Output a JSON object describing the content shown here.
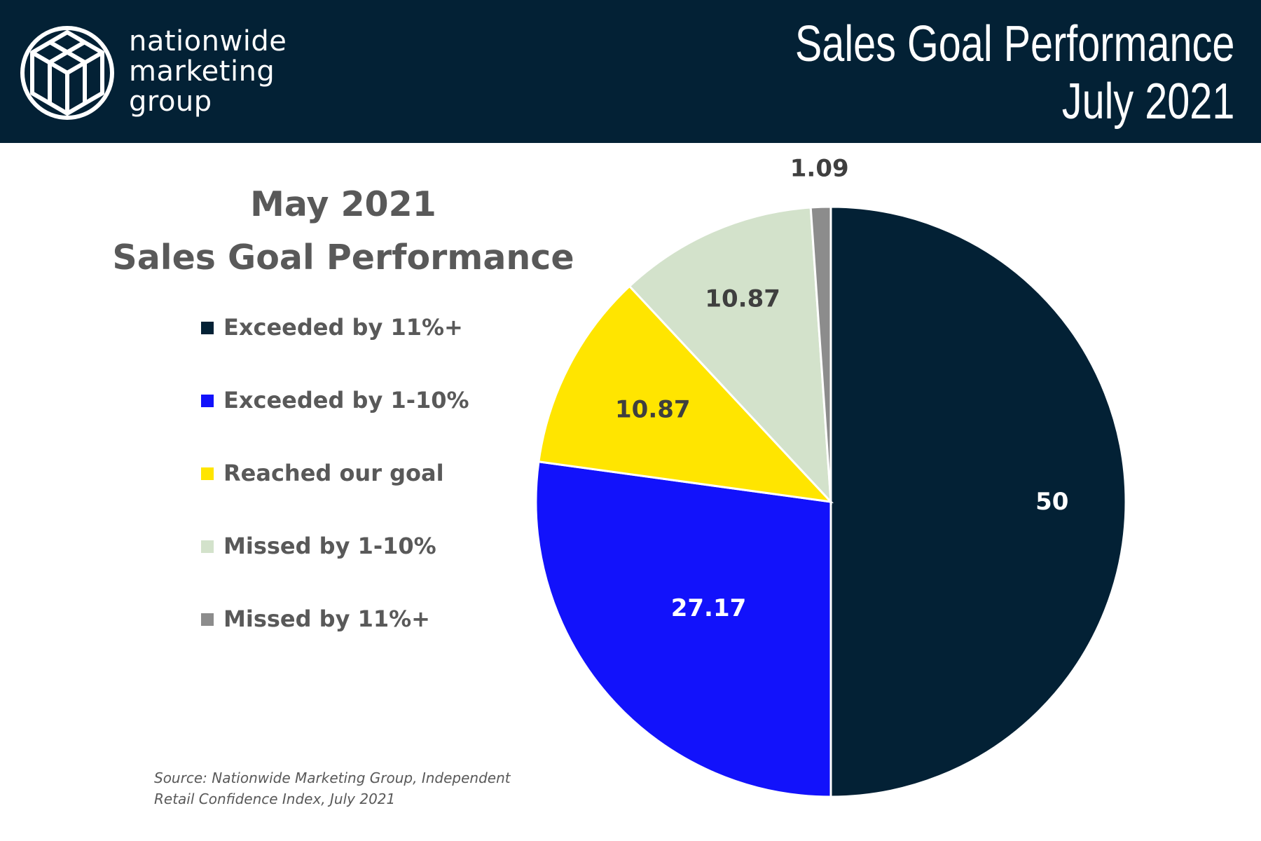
{
  "header": {
    "logo_lines": [
      "nationwide",
      "marketing",
      "group"
    ],
    "title_line1": "Sales Goal Performance",
    "title_line2": "July 2021"
  },
  "chart_data": {
    "type": "pie",
    "title_line1": "May 2021",
    "title_line2": "Sales Goal Performance",
    "legend_position": "left",
    "slices": [
      {
        "label": "Exceeded by 11%+",
        "value": 50,
        "value_label": "50",
        "color": "#032135",
        "label_color": "#ffffff"
      },
      {
        "label": "Exceeded by 1-10%",
        "value": 27.17,
        "value_label": "27.17",
        "color": "#1212FB",
        "label_color": "#ffffff"
      },
      {
        "label": "Reached our goal",
        "value": 10.87,
        "value_label": "10.87",
        "color": "#FFE500",
        "label_color": "#3f3f3f"
      },
      {
        "label": "Missed by 1-10%",
        "value": 10.87,
        "value_label": "10.87",
        "color": "#D3E2CB",
        "label_color": "#3f3f3f"
      },
      {
        "label": "Missed by 11%+",
        "value": 1.09,
        "value_label": "1.09",
        "color": "#8C8C8C",
        "label_color": "#3f3f3f"
      }
    ],
    "source_line1": "Source: Nationwide Marketing Group, Independent",
    "source_line2": "Retail Confidence Index, July 2021"
  }
}
